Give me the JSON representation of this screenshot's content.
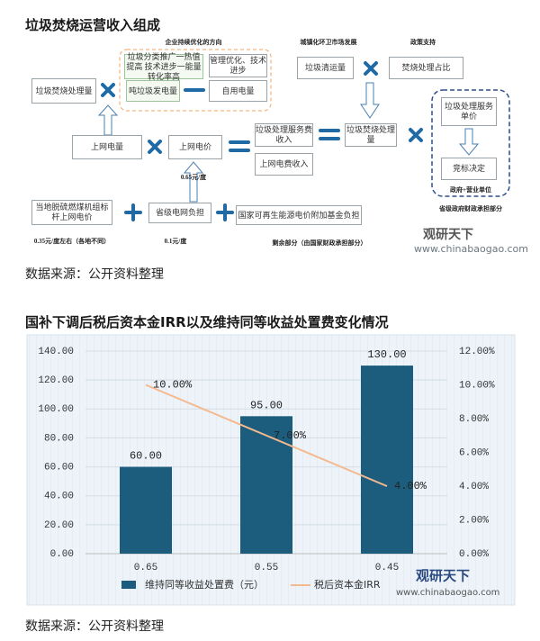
{
  "header": {
    "title": "垃圾焚烧运营收入组成"
  },
  "diagram": {
    "nodes": [
      {
        "label": "企业持续优化的方向"
      },
      {
        "label": "垃圾分类推广一热值提高 技术进步一能量转化率高"
      },
      {
        "label": "管理优化、技术进步"
      },
      {
        "label": "吨垃圾发电量"
      },
      {
        "label": "自用电量"
      },
      {
        "label": "垃圾焚烧处理量"
      },
      {
        "label": "上网电量"
      },
      {
        "label": "上网电价"
      },
      {
        "label": "垃圾处理服务费收入"
      },
      {
        "label": "上网电费收入"
      },
      {
        "label": "垃圾焚烧处理量"
      },
      {
        "label": "城镇化环卫市场发展"
      },
      {
        "label": "政策支持"
      },
      {
        "label": "垃圾清运量"
      },
      {
        "label": "焚烧处理占比"
      },
      {
        "label": "垃圾处理服务单价"
      },
      {
        "label": "竞标决定"
      },
      {
        "label": "政府+营业单位"
      },
      {
        "label": "省级政府财政承担部分"
      },
      {
        "label": "0.65元/度"
      },
      {
        "label": "当地脱硫燃煤机组标杆上网电价"
      },
      {
        "label": "省级电网负担"
      },
      {
        "label": "国家可再生能源电价附加基金负担"
      },
      {
        "label": "0.35元/度左右（各地不同）"
      },
      {
        "label": "0.1元/度"
      },
      {
        "label": "剩余部分（由国家财政承担部分）"
      }
    ]
  },
  "watermark": {
    "brand": "观研天下",
    "site": "www.chinabaogao.com"
  },
  "source": "数据来源：公开资料整理",
  "chart_data": {
    "type": "combo",
    "title": "国补下调后税后资本金IRR以及维持同等收益处置费变化情况",
    "categories": [
      "0.65",
      "0.55",
      "0.45"
    ],
    "series": [
      {
        "name": "维持同等收益处置费（元）",
        "type": "bar",
        "color": "#1c5d7e",
        "values": [
          60,
          95,
          130
        ],
        "value_labels": [
          "60.00",
          "95.00",
          "130.00"
        ]
      },
      {
        "name": "税后资本金IRR",
        "type": "line",
        "axis": "y2",
        "color": "#f4b98e",
        "values": [
          10,
          7,
          4
        ],
        "value_labels": [
          "10.00%",
          "7.00%",
          "4.00%"
        ]
      }
    ],
    "ylim": [
      0,
      140
    ],
    "yticks": [
      {
        "value": 0,
        "label": "0.00"
      },
      {
        "value": 20,
        "label": "20.00"
      },
      {
        "value": 40,
        "label": "40.00"
      },
      {
        "value": 60,
        "label": "60.00"
      },
      {
        "value": 80,
        "label": "80.00"
      },
      {
        "value": 100,
        "label": "100.00"
      },
      {
        "value": 120,
        "label": "120.00"
      },
      {
        "value": 140,
        "label": "140.00"
      }
    ],
    "y2lim": [
      0,
      12
    ],
    "y2ticks": [
      {
        "value": 0,
        "label": "0.00%"
      },
      {
        "value": 2,
        "label": "2.00%"
      },
      {
        "value": 4,
        "label": "4.00%"
      },
      {
        "value": 6,
        "label": "6.00%"
      },
      {
        "value": 8,
        "label": "8.00%"
      },
      {
        "value": 10,
        "label": "10.00%"
      },
      {
        "value": 12,
        "label": "12.00%"
      }
    ],
    "grid": true
  }
}
